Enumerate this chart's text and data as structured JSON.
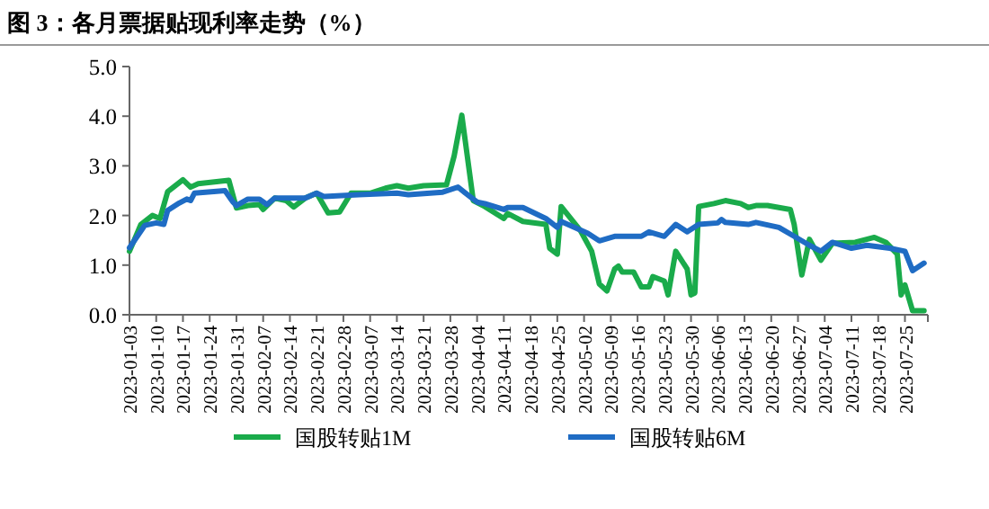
{
  "chart_data": {
    "type": "line",
    "title": "图 3：各月票据贴现利率走势（%）",
    "xlim": [
      "2023-01-03",
      "2023-07-31"
    ],
    "xticks": [
      "2023-01-03",
      "2023-01-10",
      "2023-01-17",
      "2023-01-24",
      "2023-01-31",
      "2023-02-07",
      "2023-02-14",
      "2023-02-21",
      "2023-02-28",
      "2023-03-07",
      "2023-03-14",
      "2023-03-21",
      "2023-03-28",
      "2023-04-04",
      "2023-04-11",
      "2023-04-18",
      "2023-04-25",
      "2023-05-02",
      "2023-05-09",
      "2023-05-16",
      "2023-05-23",
      "2023-05-30",
      "2023-06-06",
      "2023-06-13",
      "2023-06-20",
      "2023-06-27",
      "2023-07-04",
      "2023-07-11",
      "2023-07-18",
      "2023-07-25"
    ],
    "ylim": [
      0,
      5
    ],
    "yticks": [
      {
        "value": 0,
        "label": "0.0"
      },
      {
        "value": 1,
        "label": "1.0"
      },
      {
        "value": 2,
        "label": "2.0"
      },
      {
        "value": 3,
        "label": "3.0"
      },
      {
        "value": 4,
        "label": "4.0"
      },
      {
        "value": 5,
        "label": "5.0"
      }
    ],
    "grid": false,
    "legend": "bottom",
    "marker": "none",
    "line_style": "solid",
    "series": [
      {
        "name": "国股转贴1M",
        "color": "#1aab4b",
        "x": [
          "2023-01-03",
          "2023-01-06",
          "2023-01-09",
          "2023-01-11",
          "2023-01-13",
          "2023-01-17",
          "2023-01-19",
          "2023-01-21",
          "2023-01-29",
          "2023-01-31",
          "2023-02-03",
          "2023-02-06",
          "2023-02-07",
          "2023-02-10",
          "2023-02-13",
          "2023-02-15",
          "2023-02-18",
          "2023-02-21",
          "2023-02-24",
          "2023-02-27",
          "2023-03-02",
          "2023-03-07",
          "2023-03-11",
          "2023-03-14",
          "2023-03-17",
          "2023-03-21",
          "2023-03-27",
          "2023-03-29",
          "2023-03-31",
          "2023-04-03",
          "2023-04-06",
          "2023-04-11",
          "2023-04-12",
          "2023-04-16",
          "2023-04-22",
          "2023-04-23",
          "2023-04-25",
          "2023-04-26",
          "2023-05-01",
          "2023-05-04",
          "2023-05-06",
          "2023-05-08",
          "2023-05-10",
          "2023-05-11",
          "2023-05-12",
          "2023-05-15",
          "2023-05-17",
          "2023-05-19",
          "2023-05-20",
          "2023-05-23",
          "2023-05-24",
          "2023-05-26",
          "2023-05-29",
          "2023-05-30",
          "2023-05-31",
          "2023-06-01",
          "2023-06-05",
          "2023-06-08",
          "2023-06-12",
          "2023-06-14",
          "2023-06-16",
          "2023-06-19",
          "2023-06-25",
          "2023-06-26",
          "2023-06-28",
          "2023-06-30",
          "2023-07-03",
          "2023-07-06",
          "2023-07-12",
          "2023-07-17",
          "2023-07-20",
          "2023-07-23",
          "2023-07-24",
          "2023-07-25",
          "2023-07-27",
          "2023-07-30"
        ],
        "values": [
          1.28,
          1.82,
          2.0,
          1.94,
          2.48,
          2.72,
          2.57,
          2.64,
          2.71,
          2.15,
          2.2,
          2.22,
          2.12,
          2.35,
          2.3,
          2.17,
          2.35,
          2.45,
          2.05,
          2.07,
          2.45,
          2.45,
          2.55,
          2.6,
          2.55,
          2.6,
          2.62,
          3.2,
          4.02,
          2.3,
          2.18,
          1.94,
          2.04,
          1.88,
          1.82,
          1.34,
          1.22,
          2.18,
          1.7,
          1.28,
          0.62,
          0.48,
          0.92,
          0.98,
          0.86,
          0.86,
          0.56,
          0.56,
          0.77,
          0.68,
          0.4,
          1.28,
          0.92,
          0.4,
          0.44,
          2.18,
          2.24,
          2.3,
          2.24,
          2.16,
          2.2,
          2.2,
          2.12,
          1.82,
          0.8,
          1.52,
          1.1,
          1.44,
          1.46,
          1.56,
          1.46,
          1.22,
          0.4,
          0.6,
          0.08,
          0.08
        ]
      },
      {
        "name": "国股转贴6M",
        "color": "#1f6cc4",
        "x": [
          "2023-01-03",
          "2023-01-07",
          "2023-01-10",
          "2023-01-12",
          "2023-01-13",
          "2023-01-16",
          "2023-01-18",
          "2023-01-19",
          "2023-01-20",
          "2023-01-28",
          "2023-01-30",
          "2023-01-31",
          "2023-02-03",
          "2023-02-06",
          "2023-02-08",
          "2023-02-10",
          "2023-02-18",
          "2023-02-21",
          "2023-02-23",
          "2023-03-04",
          "2023-03-14",
          "2023-03-17",
          "2023-03-26",
          "2023-03-30",
          "2023-04-01",
          "2023-04-04",
          "2023-04-06",
          "2023-04-11",
          "2023-04-12",
          "2023-04-16",
          "2023-04-22",
          "2023-04-25",
          "2023-04-26",
          "2023-05-03",
          "2023-05-06",
          "2023-05-10",
          "2023-05-17",
          "2023-05-19",
          "2023-05-23",
          "2023-05-26",
          "2023-05-29",
          "2023-06-01",
          "2023-06-06",
          "2023-06-07",
          "2023-06-08",
          "2023-06-14",
          "2023-06-16",
          "2023-06-22",
          "2023-06-26",
          "2023-06-30",
          "2023-07-03",
          "2023-07-06",
          "2023-07-11",
          "2023-07-15",
          "2023-07-21",
          "2023-07-25",
          "2023-07-27",
          "2023-07-30"
        ],
        "values": [
          1.35,
          1.8,
          1.85,
          1.82,
          2.1,
          2.25,
          2.33,
          2.3,
          2.45,
          2.5,
          2.28,
          2.2,
          2.33,
          2.33,
          2.22,
          2.35,
          2.35,
          2.45,
          2.38,
          2.42,
          2.45,
          2.42,
          2.47,
          2.57,
          2.45,
          2.27,
          2.24,
          2.12,
          2.16,
          2.16,
          1.94,
          1.76,
          1.88,
          1.64,
          1.49,
          1.58,
          1.58,
          1.67,
          1.58,
          1.82,
          1.67,
          1.82,
          1.85,
          1.92,
          1.86,
          1.82,
          1.86,
          1.76,
          1.58,
          1.4,
          1.28,
          1.46,
          1.34,
          1.4,
          1.34,
          1.28,
          0.89,
          1.04
        ]
      }
    ]
  }
}
